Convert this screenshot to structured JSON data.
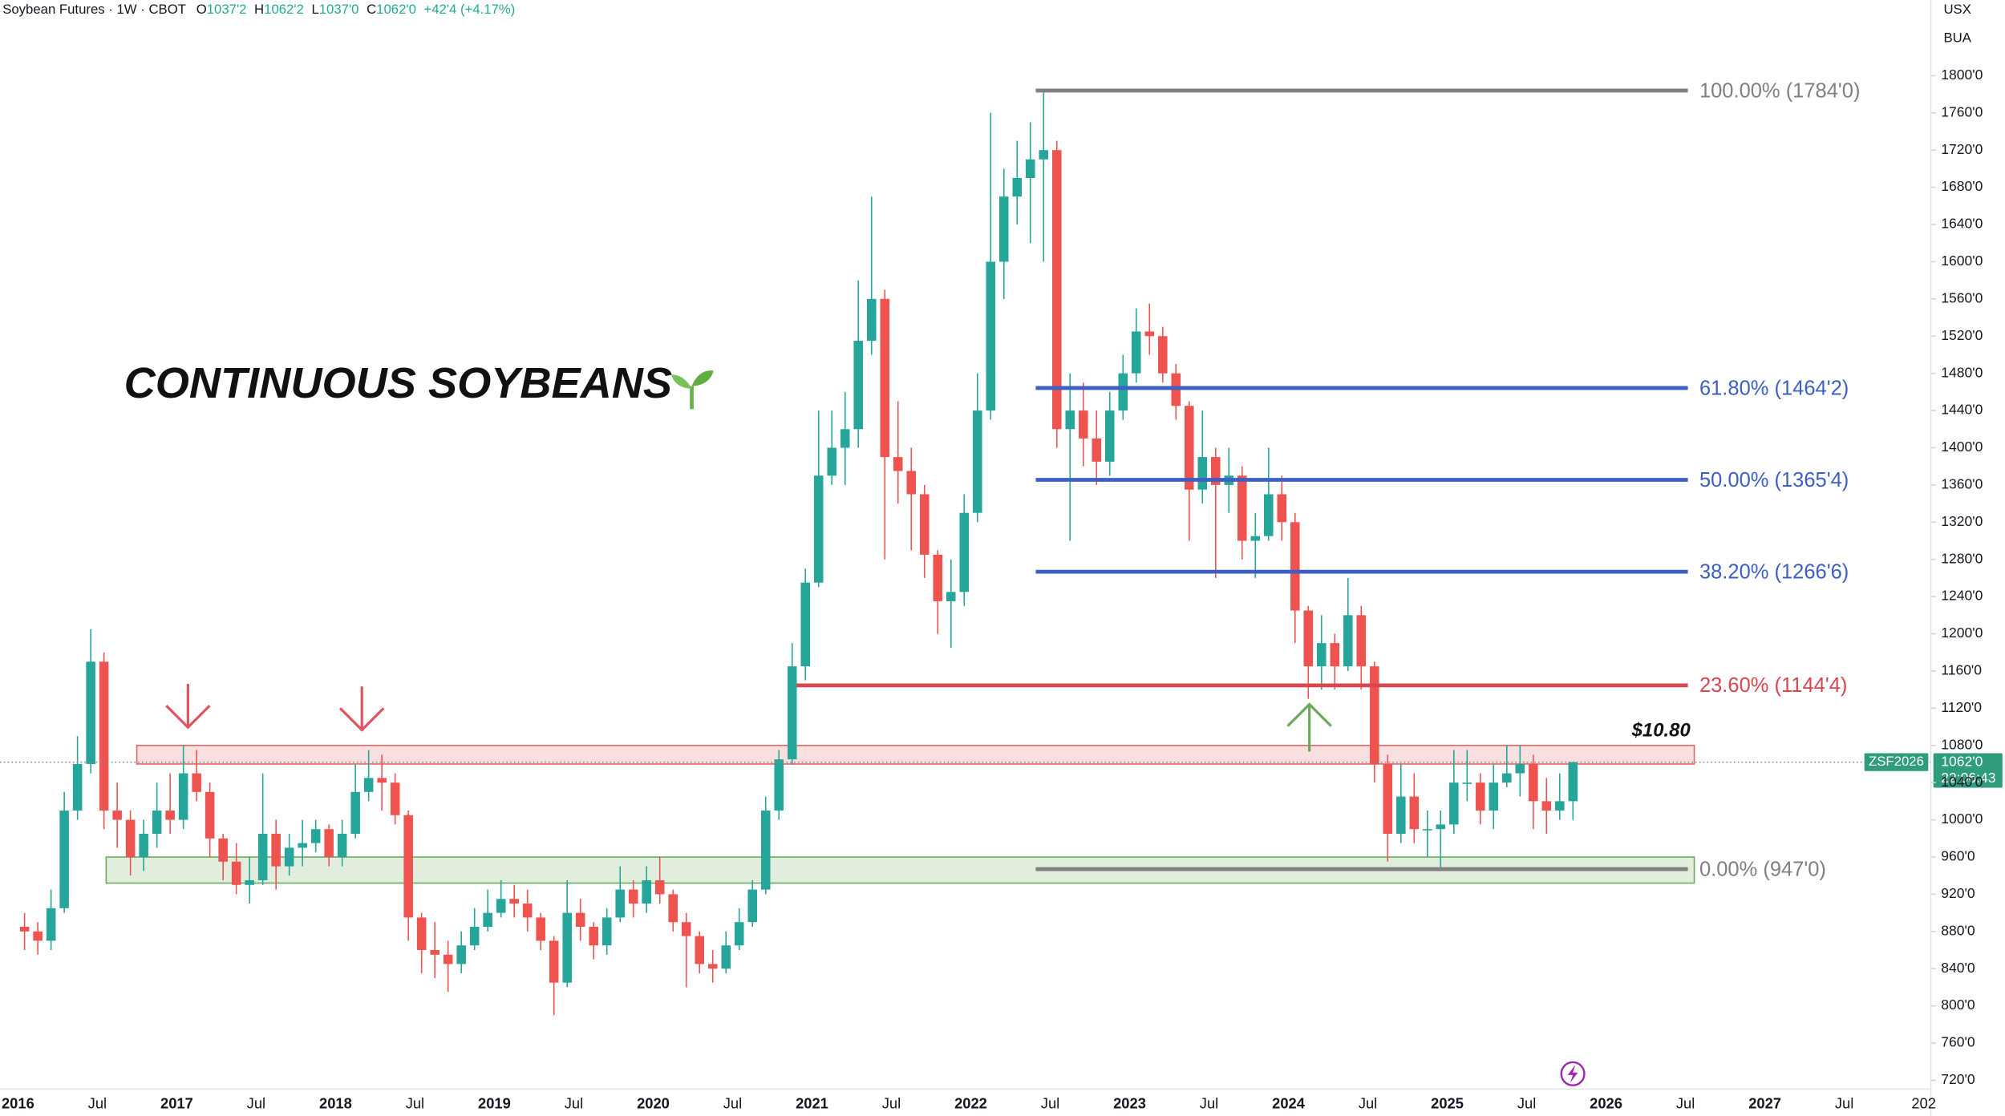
{
  "header": {
    "symbol": "Soybean Futures · 1W · CBOT",
    "o_label": "O",
    "o_value": "1037'2",
    "h_label": "H",
    "h_value": "1062'2",
    "l_label": "L",
    "l_value": "1037'0",
    "c_label": "C",
    "c_value": "1062'0",
    "change": "+42'4 (+4.17%)"
  },
  "scale_units": [
    "USX",
    "BUA"
  ],
  "chart_data": {
    "type": "candlestick",
    "title": "CONTINUOUS SOYBEANS",
    "x": [
      "2016-01",
      "2016-02",
      "2016-03",
      "2016-04",
      "2016-05",
      "2016-06",
      "2016-07",
      "2016-08",
      "2016-09",
      "2016-10",
      "2016-11",
      "2016-12",
      "2017-01",
      "2017-02",
      "2017-03",
      "2017-04",
      "2017-05",
      "2017-06",
      "2017-07",
      "2017-08",
      "2017-09",
      "2017-10",
      "2017-11",
      "2017-12",
      "2018-01",
      "2018-02",
      "2018-03",
      "2018-04",
      "2018-05",
      "2018-06",
      "2018-07",
      "2018-08",
      "2018-09",
      "2018-10",
      "2018-11",
      "2018-12",
      "2019-01",
      "2019-02",
      "2019-03",
      "2019-04",
      "2019-05",
      "2019-06",
      "2019-07",
      "2019-08",
      "2019-09",
      "2019-10",
      "2019-11",
      "2019-12",
      "2020-01",
      "2020-02",
      "2020-03",
      "2020-04",
      "2020-05",
      "2020-06",
      "2020-07",
      "2020-08",
      "2020-09",
      "2020-10",
      "2020-11",
      "2020-12",
      "2021-01",
      "2021-02",
      "2021-03",
      "2021-04",
      "2021-05",
      "2021-06",
      "2021-07",
      "2021-08",
      "2021-09",
      "2021-10",
      "2021-11",
      "2021-12",
      "2022-01",
      "2022-02",
      "2022-03",
      "2022-04",
      "2022-05",
      "2022-06",
      "2022-07",
      "2022-08",
      "2022-09",
      "2022-10",
      "2022-11",
      "2022-12",
      "2023-01",
      "2023-02",
      "2023-03",
      "2023-04",
      "2023-05",
      "2023-06",
      "2023-07",
      "2023-08",
      "2023-09",
      "2023-10",
      "2023-11",
      "2023-12",
      "2024-01",
      "2024-02",
      "2024-03",
      "2024-04",
      "2024-05",
      "2024-06",
      "2024-07",
      "2024-08",
      "2024-09",
      "2024-10",
      "2024-11",
      "2024-12",
      "2025-01",
      "2025-02",
      "2025-03",
      "2025-04",
      "2025-05",
      "2025-06",
      "2025-07",
      "2025-08",
      "2025-09",
      "2025-10"
    ],
    "open": [
      885,
      880,
      870,
      905,
      1010,
      1060,
      1170,
      1010,
      1000,
      960,
      985,
      1010,
      1000,
      1050,
      1030,
      980,
      955,
      930,
      935,
      985,
      950,
      970,
      975,
      990,
      960,
      985,
      1030,
      1045,
      1040,
      1005,
      895,
      860,
      855,
      845,
      865,
      885,
      900,
      915,
      910,
      895,
      870,
      825,
      900,
      885,
      865,
      895,
      925,
      910,
      935,
      920,
      890,
      875,
      845,
      840,
      865,
      890,
      925,
      1010,
      1065,
      1165,
      1255,
      1370,
      1400,
      1420,
      1515,
      1560,
      1390,
      1375,
      1350,
      1285,
      1235,
      1245,
      1330,
      1440,
      1600,
      1670,
      1690,
      1710,
      1720,
      1420,
      1440,
      1410,
      1385,
      1440,
      1480,
      1525,
      1520,
      1480,
      1445,
      1355,
      1390,
      1360,
      1370,
      1300,
      1305,
      1350,
      1320,
      1225,
      1165,
      1190,
      1165,
      1220,
      1165,
      1060,
      985,
      1025,
      990,
      990,
      995,
      1040,
      1040,
      1010,
      1040,
      1050,
      1060,
      1020,
      1010,
      1020
    ],
    "high": [
      900,
      890,
      925,
      1030,
      1090,
      1205,
      1180,
      1040,
      1010,
      1000,
      1040,
      1050,
      1080,
      1075,
      1040,
      985,
      975,
      960,
      1050,
      1000,
      985,
      1000,
      1000,
      995,
      1000,
      1060,
      1075,
      1070,
      1050,
      1010,
      900,
      890,
      870,
      880,
      905,
      925,
      935,
      930,
      925,
      900,
      875,
      935,
      915,
      890,
      905,
      950,
      935,
      950,
      960,
      925,
      900,
      880,
      860,
      880,
      905,
      935,
      1025,
      1075,
      1190,
      1270,
      1440,
      1440,
      1460,
      1580,
      1670,
      1570,
      1450,
      1400,
      1360,
      1290,
      1280,
      1350,
      1480,
      1760,
      1700,
      1730,
      1750,
      1784,
      1730,
      1480,
      1470,
      1440,
      1460,
      1500,
      1550,
      1555,
      1530,
      1490,
      1450,
      1440,
      1400,
      1400,
      1380,
      1330,
      1400,
      1370,
      1330,
      1230,
      1220,
      1200,
      1260,
      1230,
      1170,
      1070,
      1060,
      1050,
      1010,
      1010,
      1075,
      1075,
      1050,
      1060,
      1080,
      1080,
      1070,
      1045,
      1050,
      1062
    ],
    "low": [
      860,
      855,
      860,
      900,
      1000,
      1050,
      990,
      970,
      940,
      945,
      970,
      985,
      990,
      1020,
      960,
      935,
      920,
      910,
      930,
      925,
      940,
      950,
      965,
      950,
      950,
      980,
      1020,
      1010,
      995,
      870,
      835,
      830,
      815,
      835,
      860,
      880,
      895,
      895,
      880,
      860,
      790,
      820,
      870,
      850,
      855,
      890,
      895,
      900,
      910,
      880,
      820,
      835,
      825,
      835,
      860,
      885,
      920,
      1000,
      1060,
      1150,
      1250,
      1360,
      1360,
      1400,
      1500,
      1280,
      1340,
      1290,
      1260,
      1200,
      1185,
      1230,
      1320,
      1430,
      1560,
      1640,
      1620,
      1600,
      1400,
      1300,
      1380,
      1360,
      1370,
      1430,
      1470,
      1500,
      1470,
      1430,
      1300,
      1340,
      1260,
      1330,
      1280,
      1260,
      1300,
      1300,
      1190,
      1130,
      1140,
      1140,
      1160,
      1140,
      1040,
      955,
      975,
      975,
      960,
      947,
      985,
      1020,
      995,
      990,
      1035,
      1025,
      990,
      985,
      1000,
      1000
    ],
    "close": [
      880,
      870,
      905,
      1010,
      1060,
      1170,
      1010,
      1000,
      960,
      985,
      1010,
      1000,
      1050,
      1030,
      980,
      955,
      930,
      935,
      985,
      950,
      970,
      975,
      990,
      960,
      985,
      1030,
      1045,
      1040,
      1005,
      895,
      860,
      855,
      845,
      865,
      885,
      900,
      915,
      910,
      895,
      870,
      825,
      900,
      885,
      865,
      895,
      925,
      910,
      935,
      920,
      890,
      875,
      845,
      840,
      865,
      890,
      925,
      1010,
      1065,
      1165,
      1255,
      1370,
      1400,
      1420,
      1515,
      1560,
      1390,
      1375,
      1350,
      1285,
      1235,
      1245,
      1330,
      1440,
      1600,
      1670,
      1690,
      1710,
      1720,
      1420,
      1440,
      1410,
      1385,
      1440,
      1480,
      1525,
      1520,
      1480,
      1445,
      1355,
      1390,
      1360,
      1370,
      1300,
      1305,
      1350,
      1320,
      1225,
      1165,
      1190,
      1165,
      1220,
      1165,
      1060,
      985,
      1025,
      990,
      990,
      995,
      1040,
      1040,
      1010,
      1040,
      1050,
      1060,
      1020,
      1010,
      1020,
      1062
    ],
    "up_color": "#26a69a",
    "down_color": "#ef5350",
    "xlim": [
      2015.887,
      2028.045
    ],
    "xticks": [
      2016,
      {
        "value": 2016.5,
        "label": "Jul"
      },
      2017,
      {
        "value": 2017.5,
        "label": "Jul"
      },
      2018,
      {
        "value": 2018.5,
        "label": "Jul"
      },
      2019,
      {
        "value": 2019.5,
        "label": "Jul"
      },
      2020,
      {
        "value": 2020.5,
        "label": "Jul"
      },
      2021,
      {
        "value": 2021.5,
        "label": "Jul"
      },
      2022,
      {
        "value": 2022.5,
        "label": "Jul"
      },
      2023,
      {
        "value": 2023.5,
        "label": "Jul"
      },
      2024,
      {
        "value": 2024.5,
        "label": "Jul"
      },
      2025,
      {
        "value": 2025.5,
        "label": "Jul"
      },
      2026,
      {
        "value": 2026.5,
        "label": "Jul"
      },
      2027,
      {
        "value": 2027.5,
        "label": "Jul"
      },
      {
        "value": 2028,
        "label": "202"
      }
    ],
    "ylim": [
      710.5,
      1881.3
    ],
    "yticks": [
      {
        "value": 720,
        "label": "720'0"
      },
      {
        "value": 760,
        "label": "760'0"
      },
      {
        "value": 800,
        "label": "800'0"
      },
      {
        "value": 840,
        "label": "840'0"
      },
      {
        "value": 880,
        "label": "880'0"
      },
      {
        "value": 920,
        "label": "920'0"
      },
      {
        "value": 960,
        "label": "960'0"
      },
      {
        "value": 1000,
        "label": "1000'0"
      },
      {
        "value": 1040,
        "label": "1040'0"
      },
      {
        "value": 1080,
        "label": "1080'0"
      },
      {
        "value": 1120,
        "label": "1120'0"
      },
      {
        "value": 1160,
        "label": "1160'0"
      },
      {
        "value": 1200,
        "label": "1200'0"
      },
      {
        "value": 1240,
        "label": "1240'0"
      },
      {
        "value": 1280,
        "label": "1280'0"
      },
      {
        "value": 1320,
        "label": "1320'0"
      },
      {
        "value": 1360,
        "label": "1360'0"
      },
      {
        "value": 1400,
        "label": "1400'0"
      },
      {
        "value": 1440,
        "label": "1440'0"
      },
      {
        "value": 1480,
        "label": "1480'0"
      },
      {
        "value": 1520,
        "label": "1520'0"
      },
      {
        "value": 1560,
        "label": "1560'0"
      },
      {
        "value": 1600,
        "label": "1600'0"
      },
      {
        "value": 1640,
        "label": "1640'0"
      },
      {
        "value": 1680,
        "label": "1680'0"
      },
      {
        "value": 1720,
        "label": "1720'0"
      },
      {
        "value": 1760,
        "label": "1760'0"
      },
      {
        "value": 1800,
        "label": "1800'0"
      }
    ],
    "grid": true,
    "fib_levels": [
      {
        "value": 1784,
        "label": "100.00% (1784'0)",
        "color": "#808080"
      },
      {
        "value": 1464.25,
        "label": "61.80% (1464'2)",
        "color": "#3d5fc4"
      },
      {
        "value": 1365.5,
        "label": "50.00% (1365'4)",
        "color": "#3d5fc4"
      },
      {
        "value": 1266.75,
        "label": "38.20% (1266'6)",
        "color": "#3d5fc4"
      },
      {
        "value": 1144.5,
        "label": "23.60% (1144'4)",
        "color": "#d9464f"
      },
      {
        "value": 947,
        "label": "0.00% (947'0)",
        "color": "#808080"
      }
    ],
    "zones": [
      {
        "low": 1060,
        "high": 1080,
        "color": "#e06666",
        "label": "$10.80"
      },
      {
        "low": 932,
        "high": 960,
        "color": "#6aaa5a"
      }
    ],
    "last_price": {
      "value": 1062,
      "label": "1062'0",
      "symbol": "ZSF2026",
      "countdown": "22:06:43",
      "color": "#2f9c7c"
    }
  }
}
